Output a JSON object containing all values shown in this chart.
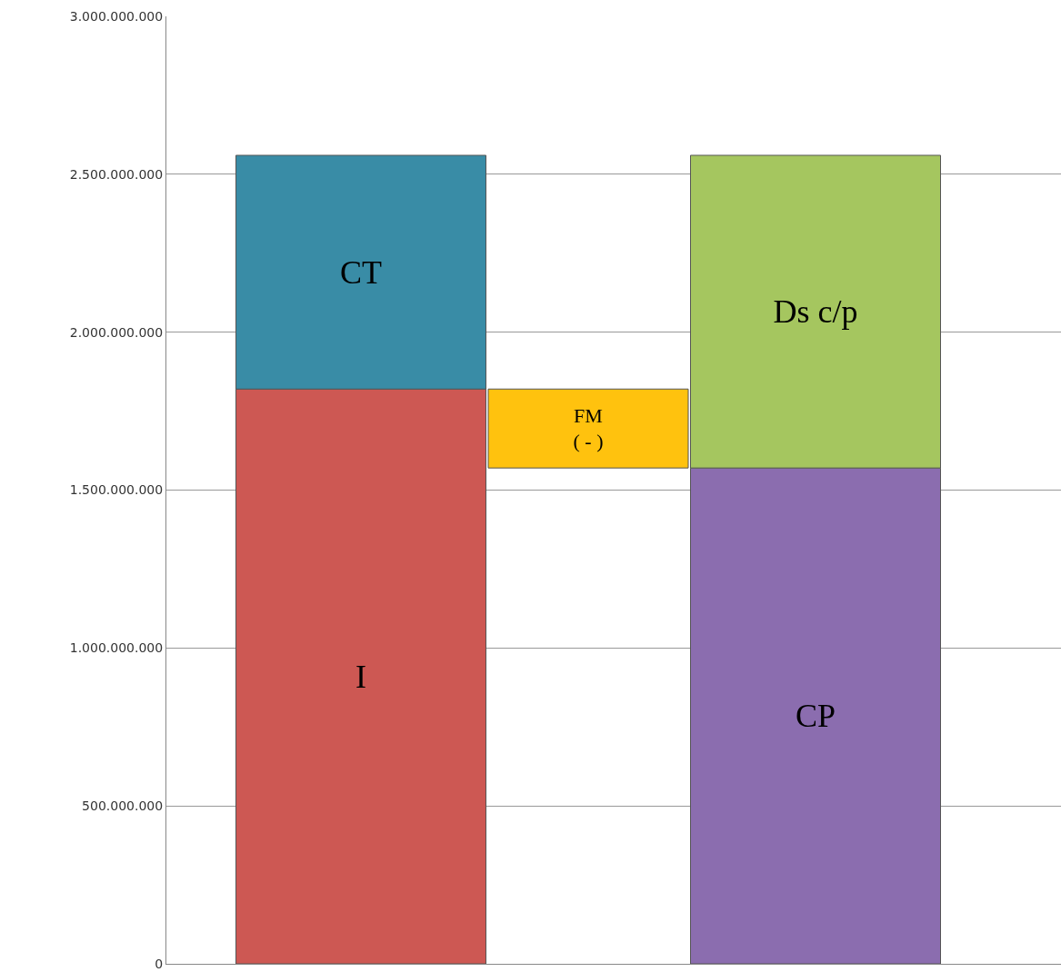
{
  "chart_data": {
    "type": "bar",
    "stacked": true,
    "categories": [
      null,
      null,
      null
    ],
    "series": [
      {
        "name": "I",
        "color": "#cd5853",
        "values": [
          1820000000,
          null,
          null
        ]
      },
      {
        "name": "CP",
        "color": "#8b6daf",
        "values": [
          null,
          null,
          1570000000
        ]
      },
      {
        "name": "FM\n( - )",
        "color": "#ffc20e",
        "values": [
          null,
          250000000,
          null
        ],
        "base": [
          null,
          1570000000,
          null
        ]
      },
      {
        "name": "CT",
        "color": "#398ca6",
        "values": [
          740000000,
          null,
          null
        ]
      },
      {
        "name": "Ds c/p",
        "color": "#a5c65f",
        "values": [
          null,
          null,
          990000000
        ]
      }
    ],
    "ylim": [
      0,
      3000000000
    ],
    "yticks": [
      {
        "value": 0,
        "label": "0"
      },
      {
        "value": 500000000,
        "label": "500.000.000"
      },
      {
        "value": 1000000000,
        "label": "1.000.000.000"
      },
      {
        "value": 1500000000,
        "label": "1.500.000.000"
      },
      {
        "value": 2000000000,
        "label": "2.000.000.000"
      },
      {
        "value": 2500000000,
        "label": "2.500.000.000"
      },
      {
        "value": 3000000000,
        "label": "3.000.000.000"
      }
    ],
    "grid": "y",
    "legend": false,
    "tick_labels": "y"
  }
}
